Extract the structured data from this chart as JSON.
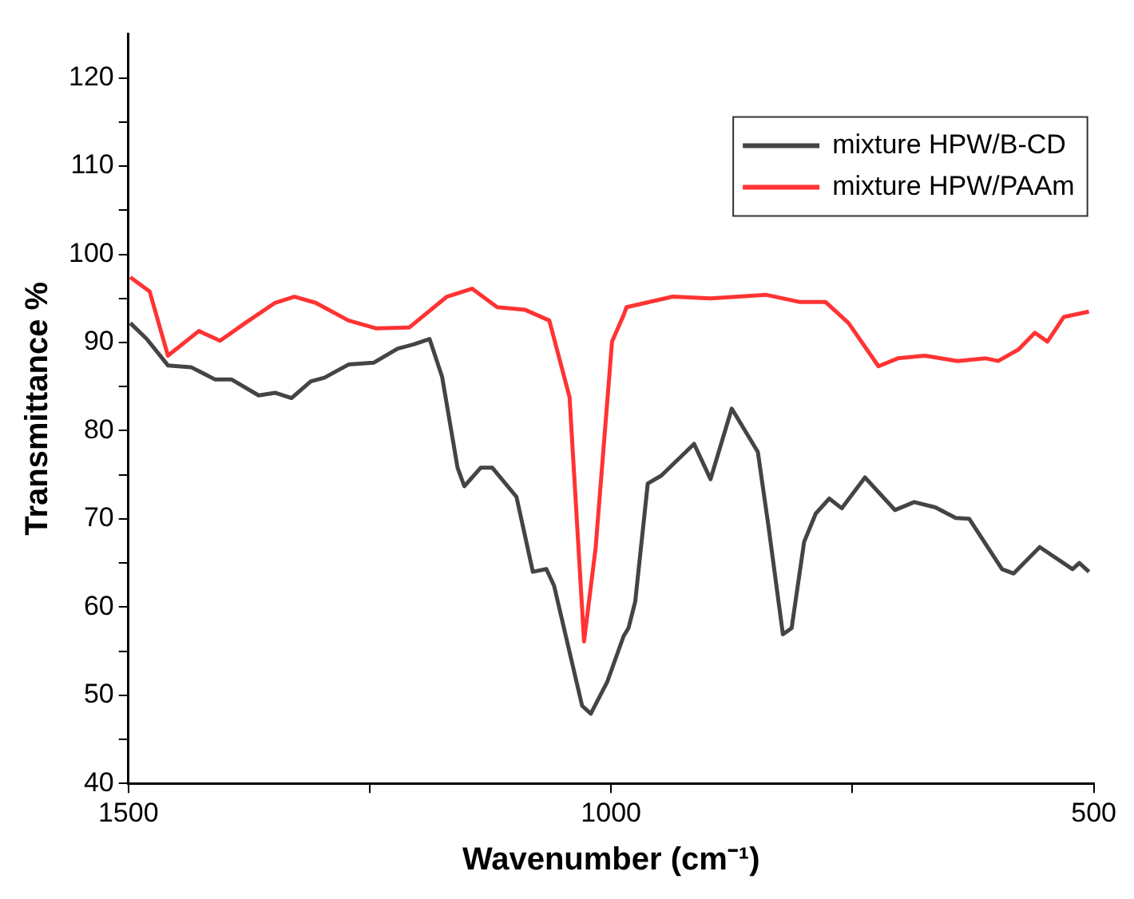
{
  "chart_data": {
    "type": "line",
    "xlabel": "Wavenumber (cm⁻¹)",
    "ylabel": "Transmittance %",
    "xlim": [
      1500,
      500
    ],
    "xticks": [
      1500,
      {
        "value": 1250,
        "label": null
      },
      1000,
      {
        "value": 750,
        "label": null
      },
      500
    ],
    "ylim": [
      40,
      125
    ],
    "yticks": [
      40,
      {
        "value": 45,
        "label": null
      },
      50,
      {
        "value": 55,
        "label": null
      },
      60,
      {
        "value": 65,
        "label": null
      },
      70,
      {
        "value": 75,
        "label": null
      },
      80,
      {
        "value": 85,
        "label": null
      },
      90,
      {
        "value": 95,
        "label": null
      },
      100,
      {
        "value": 105,
        "label": null
      },
      110,
      {
        "value": 115,
        "label": null
      },
      120
    ],
    "grid": false,
    "legend": "top right",
    "marker": "none",
    "line_style": "solid",
    "series": [
      {
        "name": "mixture HPW/B-CD",
        "color": "#444444",
        "x": [
          1498,
          1481,
          1459,
          1435,
          1410,
          1393,
          1365,
          1348,
          1331,
          1311,
          1297,
          1272,
          1246,
          1221,
          1204,
          1188,
          1175,
          1159,
          1152,
          1135,
          1123,
          1098,
          1081,
          1067,
          1059,
          1030,
          1021,
          1004,
          987,
          982,
          975,
          962,
          948,
          914,
          897,
          875,
          848,
          837,
          822,
          813,
          800,
          788,
          774,
          761,
          737,
          706,
          686,
          664,
          643,
          629,
          595,
          583,
          556,
          522,
          515,
          505
        ],
        "values": [
          92.2,
          90.4,
          87.4,
          87.2,
          85.8,
          85.8,
          84.0,
          84.3,
          83.7,
          85.6,
          86.0,
          87.5,
          87.7,
          89.3,
          89.8,
          90.4,
          86.1,
          75.8,
          73.7,
          75.8,
          75.8,
          72.5,
          64.0,
          64.3,
          62.4,
          48.8,
          47.9,
          51.5,
          56.7,
          57.6,
          60.6,
          74.0,
          74.9,
          78.5,
          74.5,
          82.5,
          77.6,
          69.2,
          56.9,
          57.6,
          67.4,
          70.6,
          72.3,
          71.2,
          74.7,
          71.0,
          71.9,
          71.3,
          70.1,
          70.0,
          64.3,
          63.8,
          66.8,
          64.3,
          65.0,
          64.0
        ]
      },
      {
        "name": "mixture HPW/PAAm",
        "color": "#ff3333",
        "x": [
          1498,
          1478,
          1459,
          1427,
          1405,
          1379,
          1348,
          1328,
          1306,
          1272,
          1243,
          1209,
          1170,
          1144,
          1118,
          1089,
          1064,
          1043,
          1028,
          1016,
          999,
          987,
          984,
          936,
          897,
          839,
          805,
          778,
          754,
          723,
          703,
          675,
          641,
          612,
          599,
          578,
          561,
          548,
          531,
          505
        ],
        "values": [
          97.4,
          95.8,
          88.5,
          91.3,
          90.2,
          92.2,
          94.5,
          95.2,
          94.5,
          92.5,
          91.6,
          91.7,
          95.2,
          96.1,
          94.0,
          93.7,
          92.5,
          83.8,
          56.1,
          66.7,
          90.1,
          93.1,
          94.0,
          95.2,
          95.0,
          95.4,
          94.6,
          94.6,
          92.2,
          87.3,
          88.2,
          88.5,
          87.9,
          88.2,
          87.9,
          89.2,
          91.1,
          90.1,
          92.9,
          93.5
        ]
      }
    ]
  }
}
